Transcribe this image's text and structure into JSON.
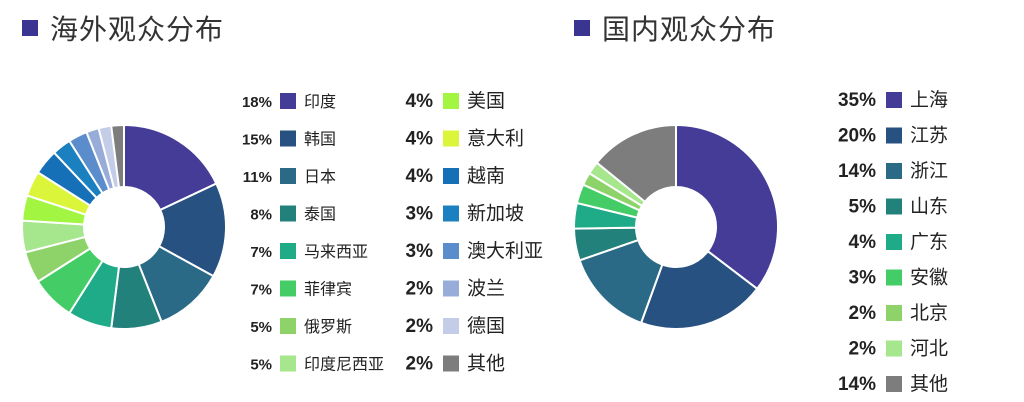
{
  "overseas": {
    "title": "海外观众分布",
    "title_color": "#3a3590"
  },
  "domestic": {
    "title": "国内观众分布",
    "title_color": "#3a3590"
  },
  "chart_data": [
    {
      "type": "pie",
      "title": "海外观众分布",
      "donut": true,
      "series": [
        {
          "label": "印度",
          "value": 18,
          "display": "18%",
          "color": "#443c96"
        },
        {
          "label": "韩国",
          "value": 15,
          "display": "15%",
          "color": "#275181"
        },
        {
          "label": "日本",
          "value": 11,
          "display": "11%",
          "color": "#2a6a86"
        },
        {
          "label": "泰国",
          "value": 8,
          "display": "8%",
          "color": "#23817c"
        },
        {
          "label": "马来西亚",
          "value": 7,
          "display": "7%",
          "color": "#1faa88"
        },
        {
          "label": "菲律宾",
          "value": 7,
          "display": "7%",
          "color": "#44cc66"
        },
        {
          "label": "俄罗斯",
          "value": 5,
          "display": "5%",
          "color": "#8ed36a"
        },
        {
          "label": "印度尼西亚",
          "value": 5,
          "display": "5%",
          "color": "#a6e68c"
        },
        {
          "label": "美国",
          "value": 4,
          "display": "4%",
          "color": "#a2f540"
        },
        {
          "label": "意大利",
          "value": 4,
          "display": "4%",
          "color": "#dbf53b"
        },
        {
          "label": "越南",
          "value": 4,
          "display": "4%",
          "color": "#1670b7"
        },
        {
          "label": "新加坡",
          "value": 3,
          "display": "3%",
          "color": "#1a80bf"
        },
        {
          "label": "澳大利亚",
          "value": 3,
          "display": "3%",
          "color": "#5b8ccb"
        },
        {
          "label": "波兰",
          "value": 2,
          "display": "2%",
          "color": "#98acd9"
        },
        {
          "label": "德国",
          "value": 2,
          "display": "2%",
          "color": "#c3cde8"
        },
        {
          "label": "其他",
          "value": 2,
          "display": "2%",
          "color": "#7d7d7d"
        }
      ]
    },
    {
      "type": "pie",
      "title": "国内观众分布",
      "donut": true,
      "series": [
        {
          "label": "上海",
          "value": 35,
          "display": "35%",
          "color": "#443c96"
        },
        {
          "label": "江苏",
          "value": 20,
          "display": "20%",
          "color": "#275181"
        },
        {
          "label": "浙江",
          "value": 14,
          "display": "14%",
          "color": "#2a6a86"
        },
        {
          "label": "山东",
          "value": 5,
          "display": "5%",
          "color": "#23817c"
        },
        {
          "label": "广东",
          "value": 4,
          "display": "4%",
          "color": "#1faa88"
        },
        {
          "label": "安徽",
          "value": 3,
          "display": "3%",
          "color": "#44cc66"
        },
        {
          "label": "北京",
          "value": 2,
          "display": "2%",
          "color": "#8ed36a"
        },
        {
          "label": "河北",
          "value": 2,
          "display": "2%",
          "color": "#a6e68c"
        },
        {
          "label": "其他",
          "value": 14,
          "display": "14%",
          "color": "#7d7d7d"
        }
      ]
    }
  ]
}
